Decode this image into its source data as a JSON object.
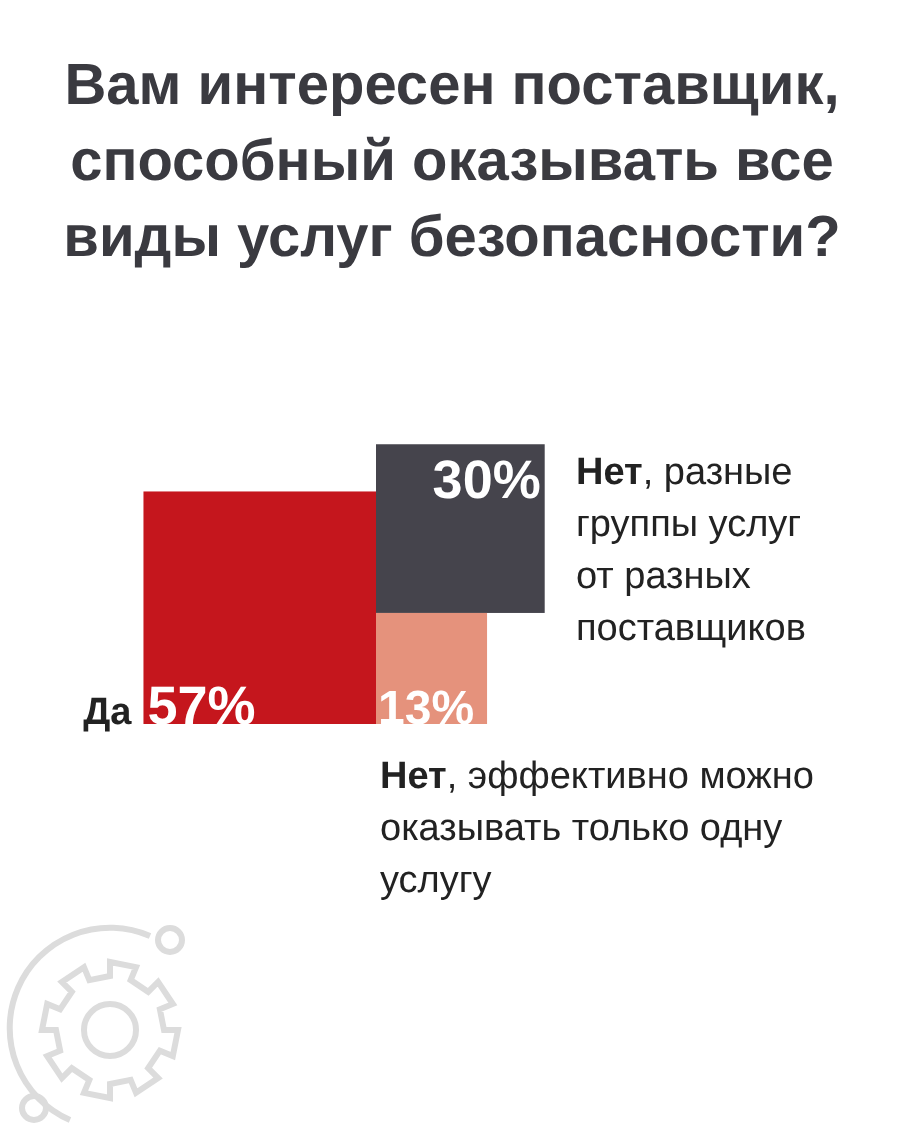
{
  "chart_data": {
    "type": "other",
    "title": "Вам интересен поставщик,\nспособный оказывать все\nвиды услуг безопасности?",
    "categories": [
      "Да",
      "Нет, разные группы услуг от разных поставщиков",
      "Нет, эффективно можно оказывать только одну услугу"
    ],
    "values": [
      57,
      30,
      13
    ],
    "colors": [
      "#c5161d",
      "#45444c",
      "#e5927c"
    ],
    "value_labels": [
      "57%",
      "30%",
      "13%"
    ]
  }
}
